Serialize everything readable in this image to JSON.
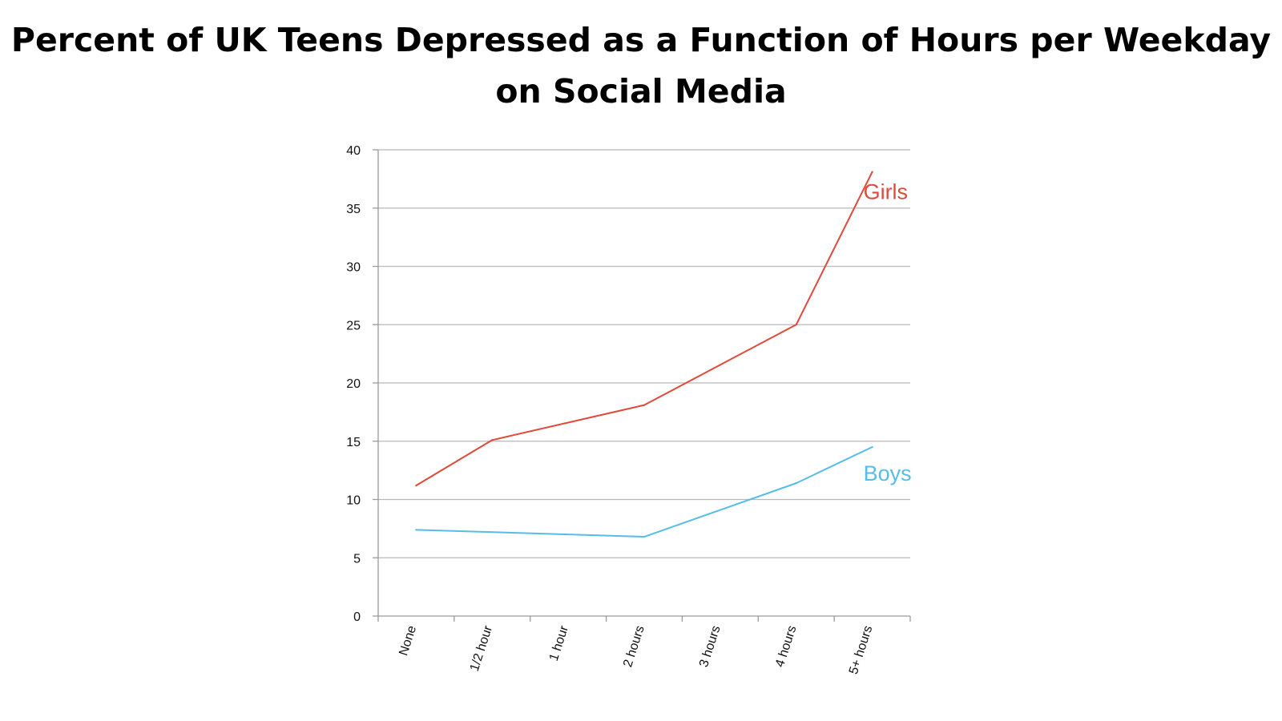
{
  "title_lines": [
    "Percent of UK Teens Depressed as a  Function of Hours per Weekday",
    "on Social Media"
  ],
  "chart_data": {
    "type": "line",
    "title": "Percent of UK Teens Depressed as a  Function of Hours per Weekday on Social Media",
    "xlabel": "",
    "ylabel": "",
    "categories": [
      "None",
      "1/2 hour",
      "1 hour",
      "2 hours",
      "3 hours",
      "4 hours",
      "5+ hours"
    ],
    "yticks": [
      0,
      5,
      10,
      15,
      20,
      25,
      30,
      35,
      40
    ],
    "ylim": [
      0,
      40
    ],
    "grid": true,
    "series": [
      {
        "name": "Girls",
        "color": "#e04a3a",
        "x": [
          "None",
          "1/2 hour",
          "2 hours",
          "4 hours",
          "5+ hours"
        ],
        "values": [
          11.2,
          15.1,
          18.1,
          25.0,
          38.1
        ]
      },
      {
        "name": "Boys",
        "color": "#55bde8",
        "x": [
          "None",
          "2 hours",
          "4 hours",
          "5+ hours"
        ],
        "values": [
          7.4,
          6.8,
          11.4,
          14.5
        ]
      }
    ]
  }
}
